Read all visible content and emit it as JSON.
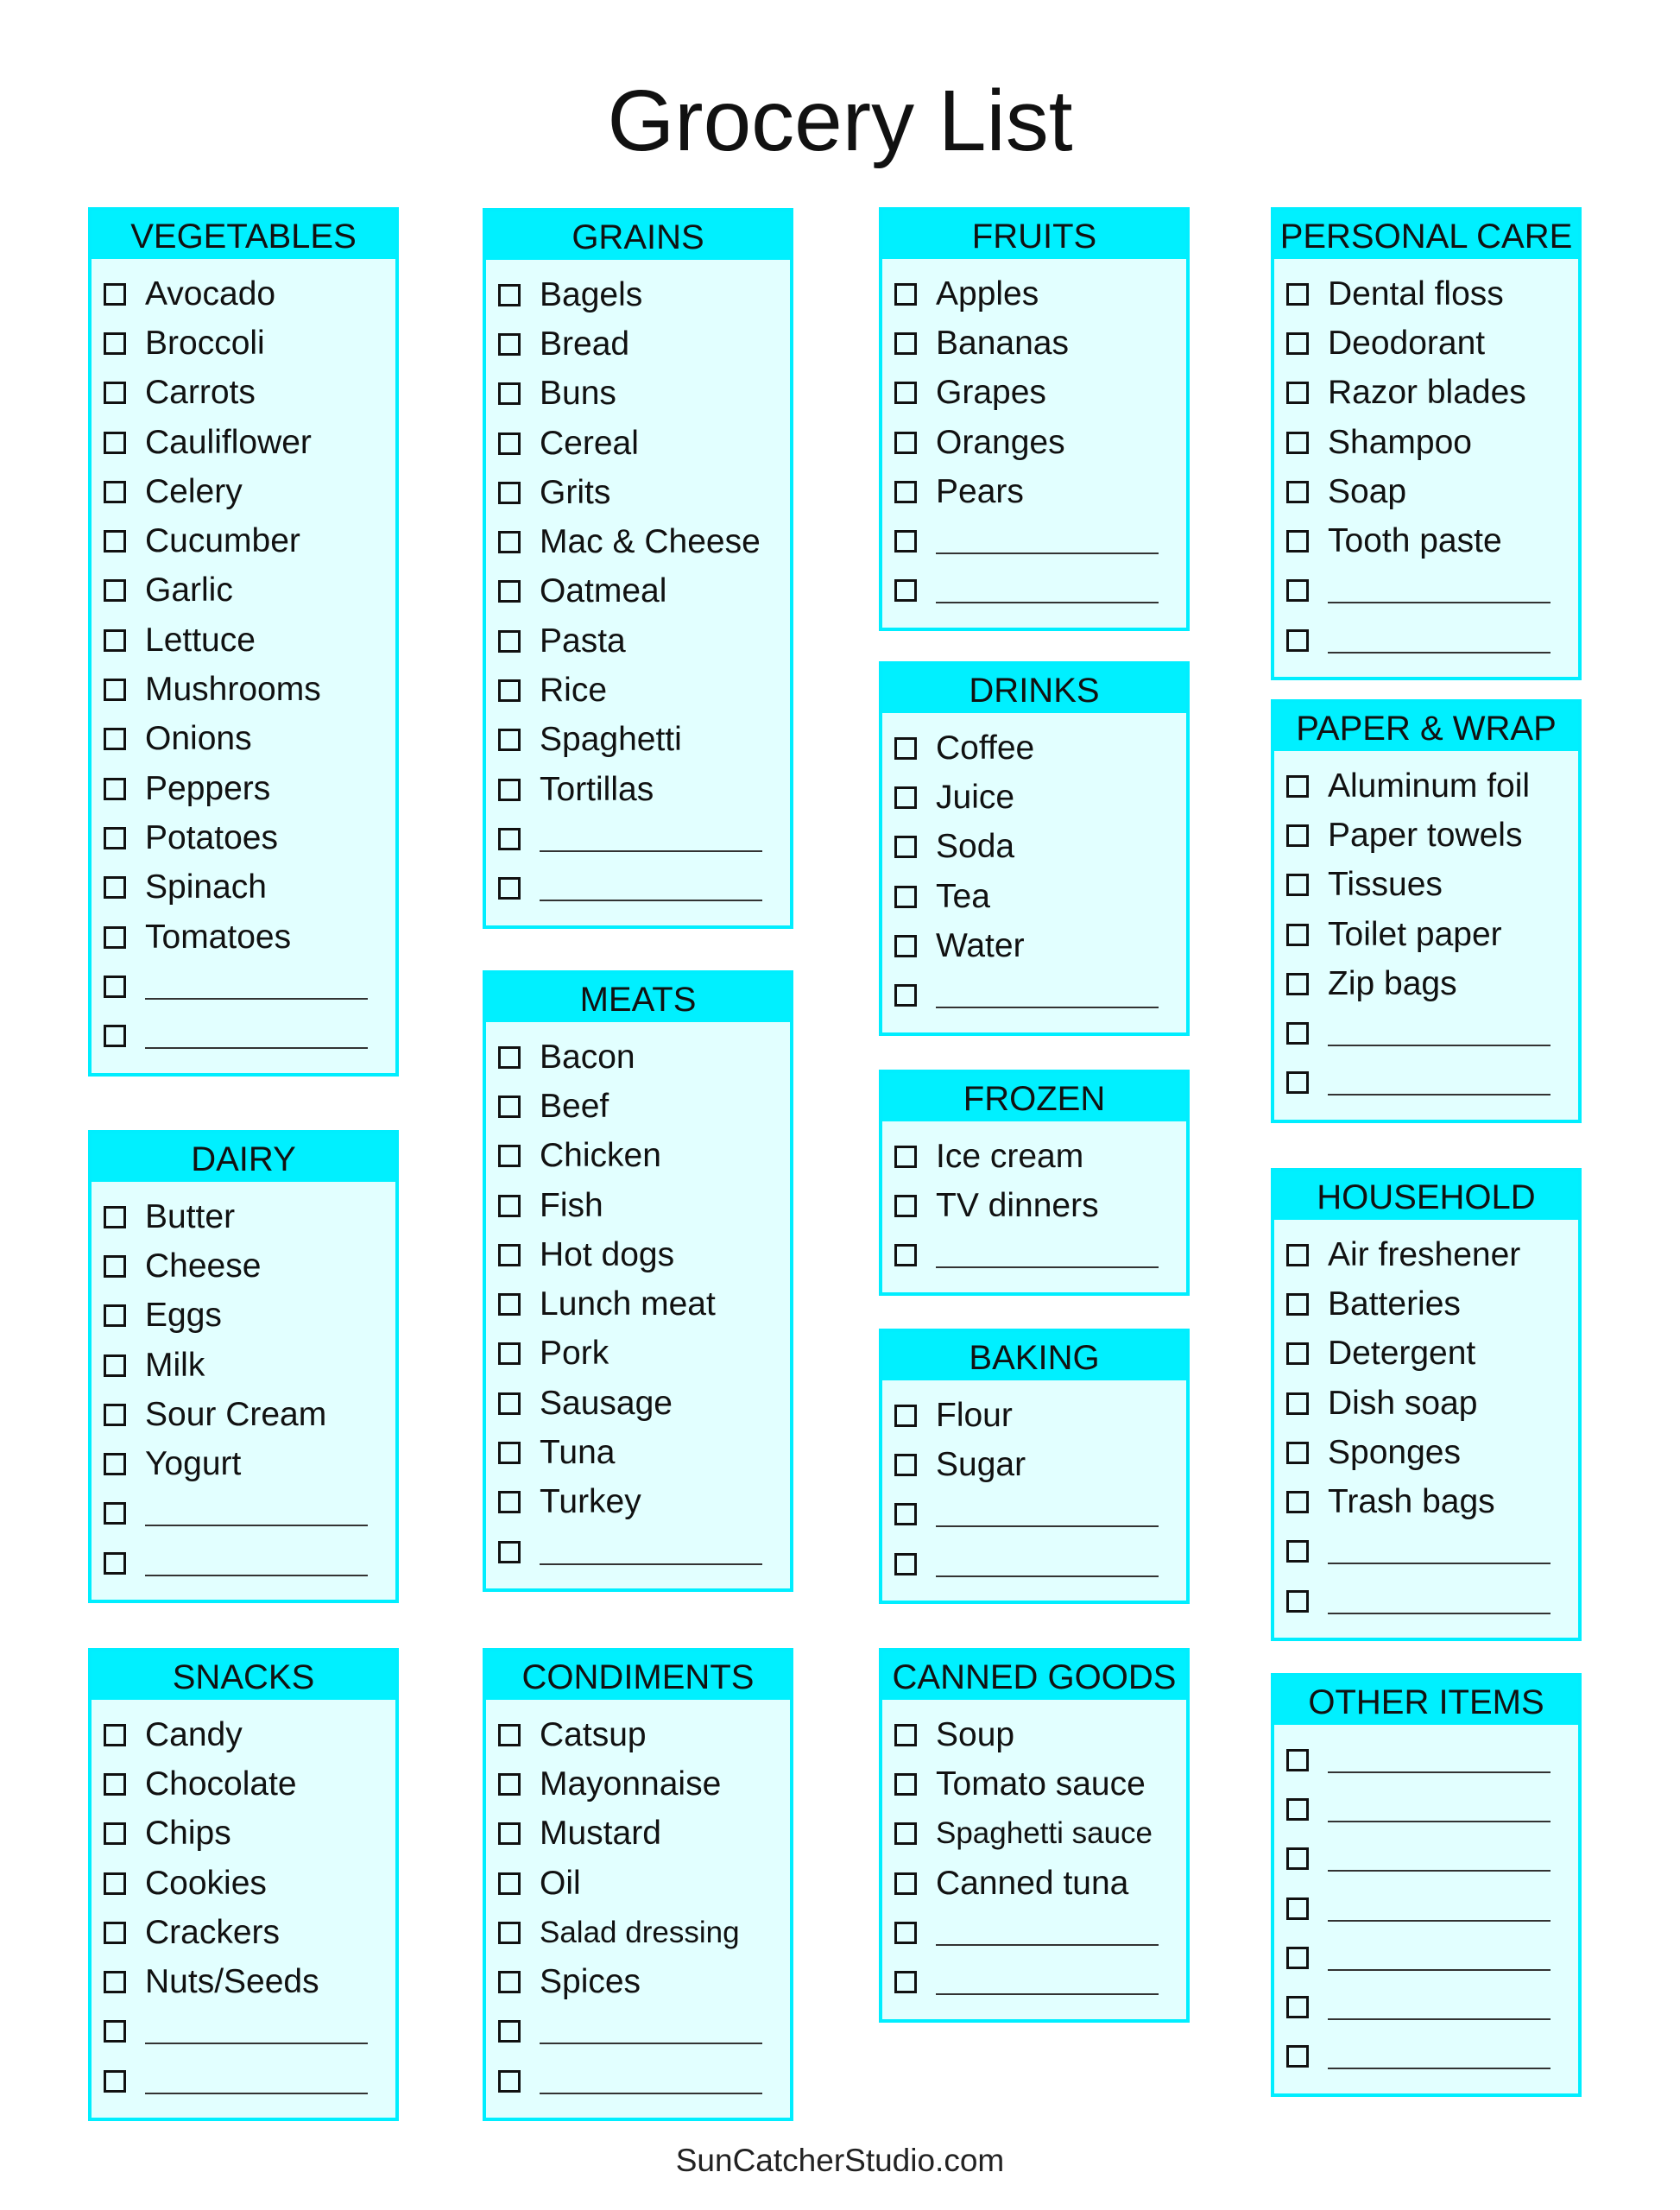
{
  "title": "Grocery List",
  "footer": "SunCatcherStudio.com",
  "colors": {
    "header": "#00f0ff",
    "border": "#00eeff",
    "box_bg": "#e2ffff"
  },
  "sections": [
    {
      "id": "vegetables",
      "title": "VEGETABLES",
      "items": [
        "Avocado",
        "Broccoli",
        "Carrots",
        "Cauliflower",
        "Celery",
        "Cucumber",
        "Garlic",
        "Lettuce",
        "Mushrooms",
        "Onions",
        "Peppers",
        "Potatoes",
        "Spinach",
        "Tomatoes",
        "",
        ""
      ]
    },
    {
      "id": "dairy",
      "title": "DAIRY",
      "items": [
        "Butter",
        "Cheese",
        "Eggs",
        "Milk",
        "Sour Cream",
        "Yogurt",
        "",
        ""
      ]
    },
    {
      "id": "snacks",
      "title": "SNACKS",
      "items": [
        "Candy",
        "Chocolate",
        "Chips",
        "Cookies",
        "Crackers",
        "Nuts/Seeds",
        "",
        ""
      ]
    },
    {
      "id": "grains",
      "title": "GRAINS",
      "items": [
        "Bagels",
        "Bread",
        "Buns",
        "Cereal",
        "Grits",
        "Mac & Cheese",
        "Oatmeal",
        "Pasta",
        "Rice",
        "Spaghetti",
        "Tortillas",
        "",
        ""
      ]
    },
    {
      "id": "meats",
      "title": "MEATS",
      "items": [
        "Bacon",
        "Beef",
        "Chicken",
        "Fish",
        "Hot dogs",
        "Lunch meat",
        "Pork",
        "Sausage",
        "Tuna",
        "Turkey",
        ""
      ]
    },
    {
      "id": "condiments",
      "title": "CONDIMENTS",
      "items": [
        "Catsup",
        "Mayonnaise",
        "Mustard",
        "Oil",
        "Salad dressing",
        "Spices",
        "",
        ""
      ]
    },
    {
      "id": "fruits",
      "title": "FRUITS",
      "items": [
        "Apples",
        "Bananas",
        "Grapes",
        "Oranges",
        "Pears",
        "",
        ""
      ]
    },
    {
      "id": "drinks",
      "title": "DRINKS",
      "items": [
        "Coffee",
        "Juice",
        "Soda",
        "Tea",
        "Water",
        ""
      ]
    },
    {
      "id": "frozen",
      "title": "FROZEN",
      "items": [
        "Ice cream",
        "TV dinners",
        ""
      ]
    },
    {
      "id": "baking",
      "title": "BAKING",
      "items": [
        "Flour",
        "Sugar",
        "",
        ""
      ]
    },
    {
      "id": "canned-goods",
      "title": "CANNED GOODS",
      "items": [
        "Soup",
        "Tomato sauce",
        "Spaghetti sauce",
        "Canned tuna",
        "",
        ""
      ]
    },
    {
      "id": "personal-care",
      "title": "PERSONAL CARE",
      "items": [
        "Dental floss",
        "Deodorant",
        "Razor blades",
        "Shampoo",
        "Soap",
        "Tooth paste",
        "",
        ""
      ]
    },
    {
      "id": "paper-wrap",
      "title": "PAPER & WRAP",
      "items": [
        "Aluminum foil",
        "Paper towels",
        "Tissues",
        "Toilet paper",
        "Zip bags",
        "",
        ""
      ]
    },
    {
      "id": "household",
      "title": "HOUSEHOLD",
      "items": [
        "Air freshener",
        "Batteries",
        "Detergent",
        "Dish soap",
        "Sponges",
        "Trash bags",
        "",
        ""
      ]
    },
    {
      "id": "other-items",
      "title": "OTHER ITEMS",
      "items": [
        "",
        "",
        "",
        "",
        "",
        "",
        ""
      ]
    }
  ]
}
